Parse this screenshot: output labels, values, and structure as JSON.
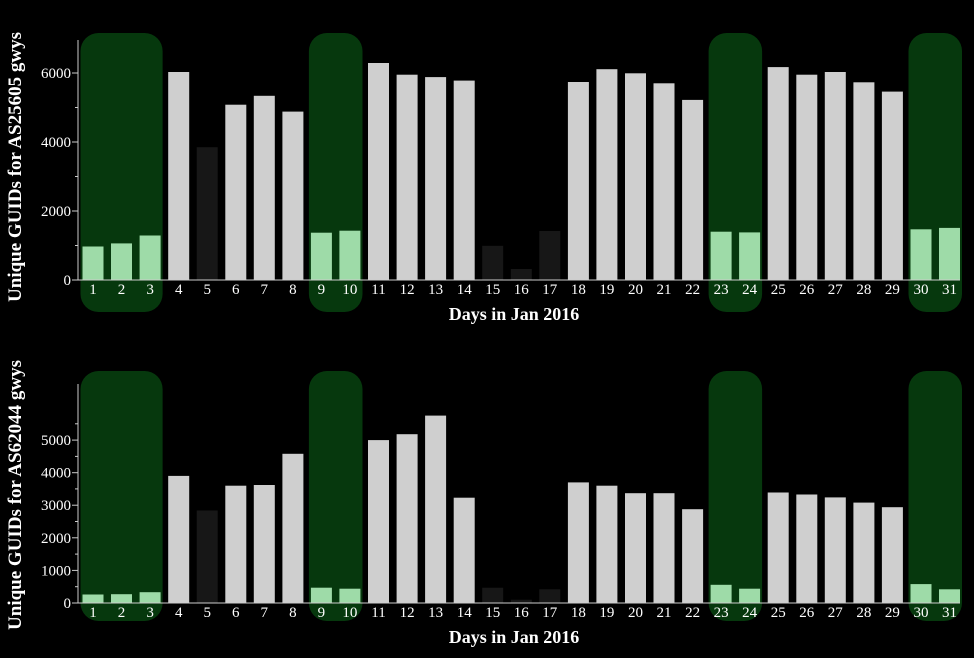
{
  "chart_data": [
    {
      "type": "bar",
      "xlabel": "Days in Jan 2016",
      "ylabel": "Unique GUIDs for AS25605 gwys",
      "ylim": [
        0,
        6000
      ],
      "yticks": [
        0,
        2000,
        4000,
        6000
      ],
      "categories": [
        "1",
        "2",
        "3",
        "4",
        "5",
        "6",
        "7",
        "8",
        "9",
        "10",
        "11",
        "12",
        "13",
        "14",
        "15",
        "16",
        "17",
        "18",
        "19",
        "20",
        "21",
        "22",
        "23",
        "24",
        "25",
        "26",
        "27",
        "28",
        "29",
        "30",
        "31"
      ],
      "values": [
        970,
        1060,
        1290,
        6030,
        3850,
        5080,
        5340,
        4880,
        1370,
        1430,
        6290,
        5950,
        5880,
        5780,
        990,
        320,
        1420,
        5740,
        6110,
        5990,
        5700,
        5220,
        1400,
        1380,
        6170,
        5950,
        6030,
        5730,
        5460,
        1470,
        1510
      ],
      "weekend_days": [
        "1",
        "2",
        "3",
        "9",
        "10",
        "23",
        "24",
        "30",
        "31"
      ],
      "anomaly_days": [
        "5",
        "15",
        "16",
        "17"
      ],
      "grid": false
    },
    {
      "type": "bar",
      "xlabel": "Days in Jan 2016",
      "ylabel": "Unique GUIDs for AS62044 gwys",
      "ylim": [
        0,
        5800
      ],
      "yticks": [
        0,
        1000,
        2000,
        3000,
        4000,
        5000
      ],
      "categories": [
        "1",
        "2",
        "3",
        "4",
        "5",
        "6",
        "7",
        "8",
        "9",
        "10",
        "11",
        "12",
        "13",
        "14",
        "15",
        "16",
        "17",
        "18",
        "19",
        "20",
        "21",
        "22",
        "23",
        "24",
        "25",
        "26",
        "27",
        "28",
        "29",
        "30",
        "31"
      ],
      "values": [
        260,
        270,
        330,
        3900,
        2840,
        3600,
        3620,
        4580,
        470,
        440,
        5000,
        5180,
        5750,
        3230,
        470,
        100,
        420,
        3700,
        3600,
        3370,
        3370,
        2880,
        560,
        440,
        3390,
        3330,
        3240,
        3080,
        2940,
        580,
        420
      ],
      "weekend_days": [
        "1",
        "2",
        "3",
        "9",
        "10",
        "23",
        "24",
        "30",
        "31"
      ],
      "anomaly_days": [
        "5",
        "15",
        "16",
        "17"
      ],
      "grid": false
    }
  ],
  "colors": {
    "background": "#000000",
    "weekday_bar": "#cfcfcf",
    "weekend_bar": "#9edba8",
    "anomaly_bar": "#171717",
    "weekend_band": "#06380d",
    "text": "#ffffff"
  }
}
